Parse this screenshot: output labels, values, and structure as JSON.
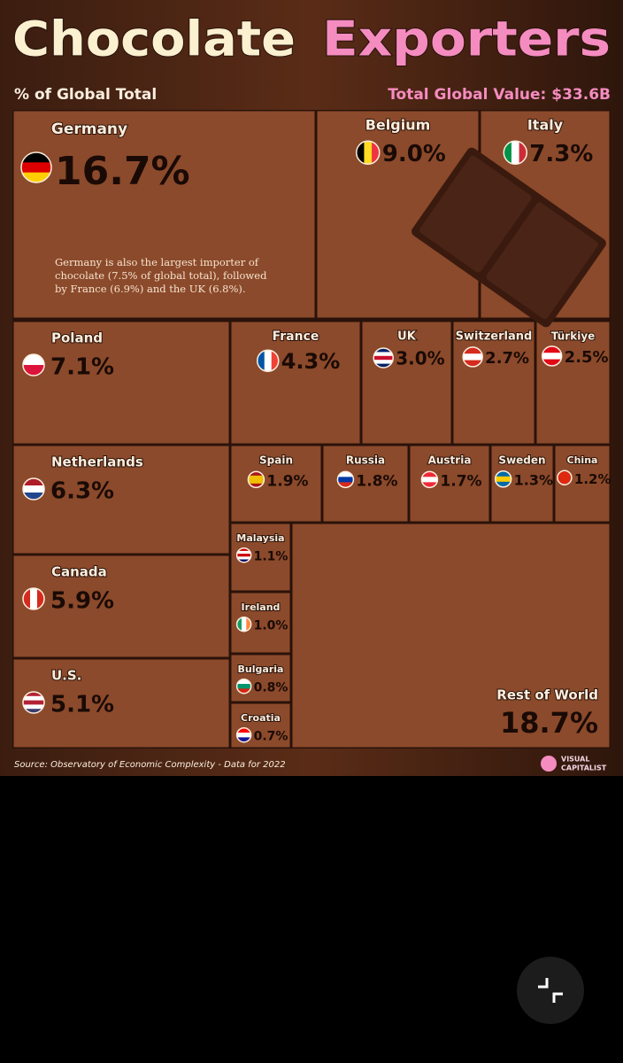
{
  "chart_data": {
    "type": "treemap",
    "title": "Chocolate",
    "title_highlight": "Exporters",
    "subtitle": "% of Global Total",
    "total": "Total Global Value: $33.6B",
    "annotation": [
      "Germany is also the largest importer of",
      "chocolate (7.5% of global total), followed",
      "by France (6.9%) and the UK (6.8%)."
    ],
    "source": "Source: Observatory of Economic Complexity - Data for 2022",
    "brand": [
      "VISUAL",
      "CAPITALIST"
    ],
    "categories": [
      "Germany",
      "Belgium",
      "Italy",
      "Poland",
      "France",
      "UK",
      "Switzerland",
      "Türkiye",
      "Netherlands",
      "Canada",
      "U.S.",
      "Spain",
      "Russia",
      "Austria",
      "Sweden",
      "China",
      "Malaysia",
      "Ireland",
      "Bulgaria",
      "Croatia",
      "Rest of World"
    ],
    "values": [
      16.7,
      9.0,
      7.3,
      7.1,
      4.3,
      3.0,
      2.7,
      2.5,
      6.3,
      5.9,
      5.1,
      1.9,
      1.8,
      1.7,
      1.3,
      1.2,
      1.1,
      1.0,
      0.8,
      0.7,
      18.7
    ],
    "value_labels": [
      "16.7%",
      "9.0%",
      "7.3%",
      "7.1%",
      "4.3%",
      "3.0%",
      "2.7%",
      "2.5%",
      "6.3%",
      "5.9%",
      "5.1%",
      "1.9%",
      "1.8%",
      "1.7%",
      "1.3%",
      "1.2%",
      "1.1%",
      "1.0%",
      "0.8%",
      "0.7%",
      "18.7%"
    ],
    "color": "#8b4a2b"
  }
}
